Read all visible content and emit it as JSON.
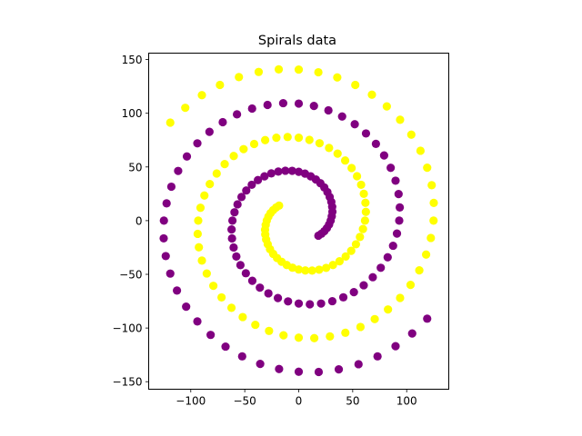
{
  "chart_data": {
    "type": "scatter",
    "title": "Spirals data",
    "xlabel": "",
    "ylabel": "",
    "xlim": [
      -139,
      139
    ],
    "ylim": [
      -157,
      156
    ],
    "xticks": [
      -100,
      -50,
      0,
      50,
      100
    ],
    "yticks": [
      -150,
      -100,
      -50,
      0,
      50,
      100,
      150
    ],
    "grid": false,
    "aspect": "equal",
    "series": [
      {
        "color": "#800080",
        "x": [
          18.2,
          21.0,
          23.7,
          26.1,
          28.1,
          29.6,
          30.6,
          31.2,
          31.0,
          30.2,
          28.7,
          26.6,
          23.7,
          20.1,
          15.9,
          11.1,
          5.8,
          0,
          -6.1,
          -12.4,
          -18.9,
          -25.4,
          -31.7,
          -37.8,
          -43.5,
          -48.6,
          -53.0,
          -56.7,
          -59.5,
          -61.4,
          -62.2,
          -61.8,
          -60.3,
          -57.8,
          -54.0,
          -49.0,
          -43.0,
          -36.0,
          -28.1,
          -19.3,
          -9.9,
          0,
          10.3,
          20.7,
          31.1,
          41.3,
          51.1,
          60.2,
          68.6,
          76.0,
          82.4,
          87.4,
          91.0,
          93.1,
          93.6,
          92.5,
          89.7,
          85.2,
          79.1,
          71.5,
          62.3,
          51.9,
          40.2,
          27.5,
          14.1,
          0,
          -14.4,
          -28.9,
          -43.2,
          -57.2,
          -70.4,
          -82.7,
          -93.9,
          -103.6,
          -111.7,
          -118.0,
          -122.4,
          -124.9,
          -125.1,
          -123.2,
          -119.0,
          -112.8,
          -104.3,
          -93.9,
          -81.6,
          -67.8,
          -52.4,
          -35.7,
          -18.2,
          0,
          18.5,
          37.1,
          55.4,
          73.0,
          89.7,
          105.1,
          119.0
        ],
        "y": [
          -14.0,
          -12.2,
          -9.8,
          -7.0,
          -3.7,
          0,
          4.0,
          8.4,
          12.9,
          17.5,
          22.0,
          26.6,
          30.9,
          34.8,
          38.3,
          41.3,
          43.8,
          45.5,
          46.4,
          46.5,
          45.7,
          44.0,
          41.3,
          37.8,
          33.4,
          28.1,
          22.0,
          15.2,
          7.8,
          0,
          -8.2,
          -16.6,
          -25.0,
          -33.4,
          -41.4,
          -49.0,
          -56.0,
          -62.4,
          -67.7,
          -72.1,
          -75.2,
          -77.2,
          -77.9,
          -77.2,
          -75.0,
          -71.4,
          -66.6,
          -60.2,
          -52.7,
          -43.9,
          -34.1,
          -23.4,
          -12.0,
          0,
          12.3,
          24.8,
          37.2,
          49.2,
          60.7,
          71.5,
          81.2,
          89.8,
          97.0,
          102.7,
          106.8,
          109.0,
          109.4,
          107.8,
          104.4,
          99.0,
          91.7,
          82.7,
          72.0,
          59.8,
          46.3,
          31.6,
          16.1,
          0,
          -16.5,
          -33.0,
          -49.3,
          -65.1,
          -80.1,
          -93.9,
          -106.4,
          -117.3,
          -126.4,
          -133.4,
          -138.2,
          -140.7,
          -140.9,
          -138.5,
          -133.7,
          -126.4,
          -116.9,
          -105.1,
          -91.3
        ]
      },
      {
        "color": "#ffff00",
        "x": [
          -18.2,
          -21.0,
          -23.7,
          -26.1,
          -28.1,
          -29.6,
          -30.6,
          -31.2,
          -31.0,
          -30.2,
          -28.7,
          -26.6,
          -23.7,
          -20.1,
          -15.9,
          -11.1,
          -5.8,
          0,
          6.1,
          12.4,
          18.9,
          25.4,
          31.7,
          37.8,
          43.5,
          48.6,
          53.0,
          56.7,
          59.5,
          61.4,
          62.2,
          61.8,
          60.3,
          57.8,
          54.0,
          49.0,
          43.0,
          36.0,
          28.1,
          19.3,
          9.9,
          0,
          -10.3,
          -20.7,
          -31.1,
          -41.3,
          -51.1,
          -60.2,
          -68.6,
          -76.0,
          -82.4,
          -87.4,
          -91.0,
          -93.1,
          -93.6,
          -92.5,
          -89.7,
          -85.2,
          -79.1,
          -71.5,
          -62.3,
          -51.9,
          -40.2,
          -27.5,
          -14.1,
          0,
          14.4,
          28.9,
          43.2,
          57.2,
          70.4,
          82.7,
          93.9,
          103.6,
          111.7,
          118.0,
          122.4,
          124.9,
          125.1,
          123.2,
          119.0,
          112.8,
          104.3,
          93.9,
          81.6,
          67.8,
          52.4,
          35.7,
          18.2,
          0,
          -18.5,
          -37.1,
          -55.4,
          -73.0,
          -89.7,
          -105.1,
          -119.0
        ],
        "y": [
          14.0,
          12.2,
          9.8,
          7.0,
          3.7,
          0,
          -4.0,
          -8.4,
          -12.9,
          -17.5,
          -22.0,
          -26.6,
          -30.9,
          -34.8,
          -38.3,
          -41.3,
          -43.8,
          -45.5,
          -46.4,
          -46.5,
          -45.7,
          -44.0,
          -41.3,
          -37.8,
          -33.4,
          -28.1,
          -22.0,
          -15.2,
          -7.8,
          0,
          8.2,
          16.6,
          25.0,
          33.4,
          41.4,
          49.0,
          56.0,
          62.4,
          67.7,
          72.1,
          75.2,
          77.2,
          77.9,
          77.2,
          75.0,
          71.4,
          66.6,
          60.2,
          52.7,
          43.9,
          34.1,
          23.4,
          12.0,
          0,
          -12.3,
          -24.8,
          -37.2,
          -49.2,
          -60.7,
          -71.5,
          -81.2,
          -89.8,
          -97.0,
          -102.7,
          -106.8,
          -109.0,
          -109.4,
          -107.8,
          -104.4,
          -99.0,
          -91.7,
          -82.7,
          -72.0,
          -59.8,
          -46.3,
          -31.6,
          -16.1,
          0,
          16.5,
          33.0,
          49.3,
          65.1,
          80.1,
          93.9,
          106.4,
          117.3,
          126.4,
          133.4,
          138.2,
          140.7,
          140.9,
          138.5,
          133.7,
          126.4,
          116.9,
          105.1,
          91.3
        ]
      }
    ]
  }
}
